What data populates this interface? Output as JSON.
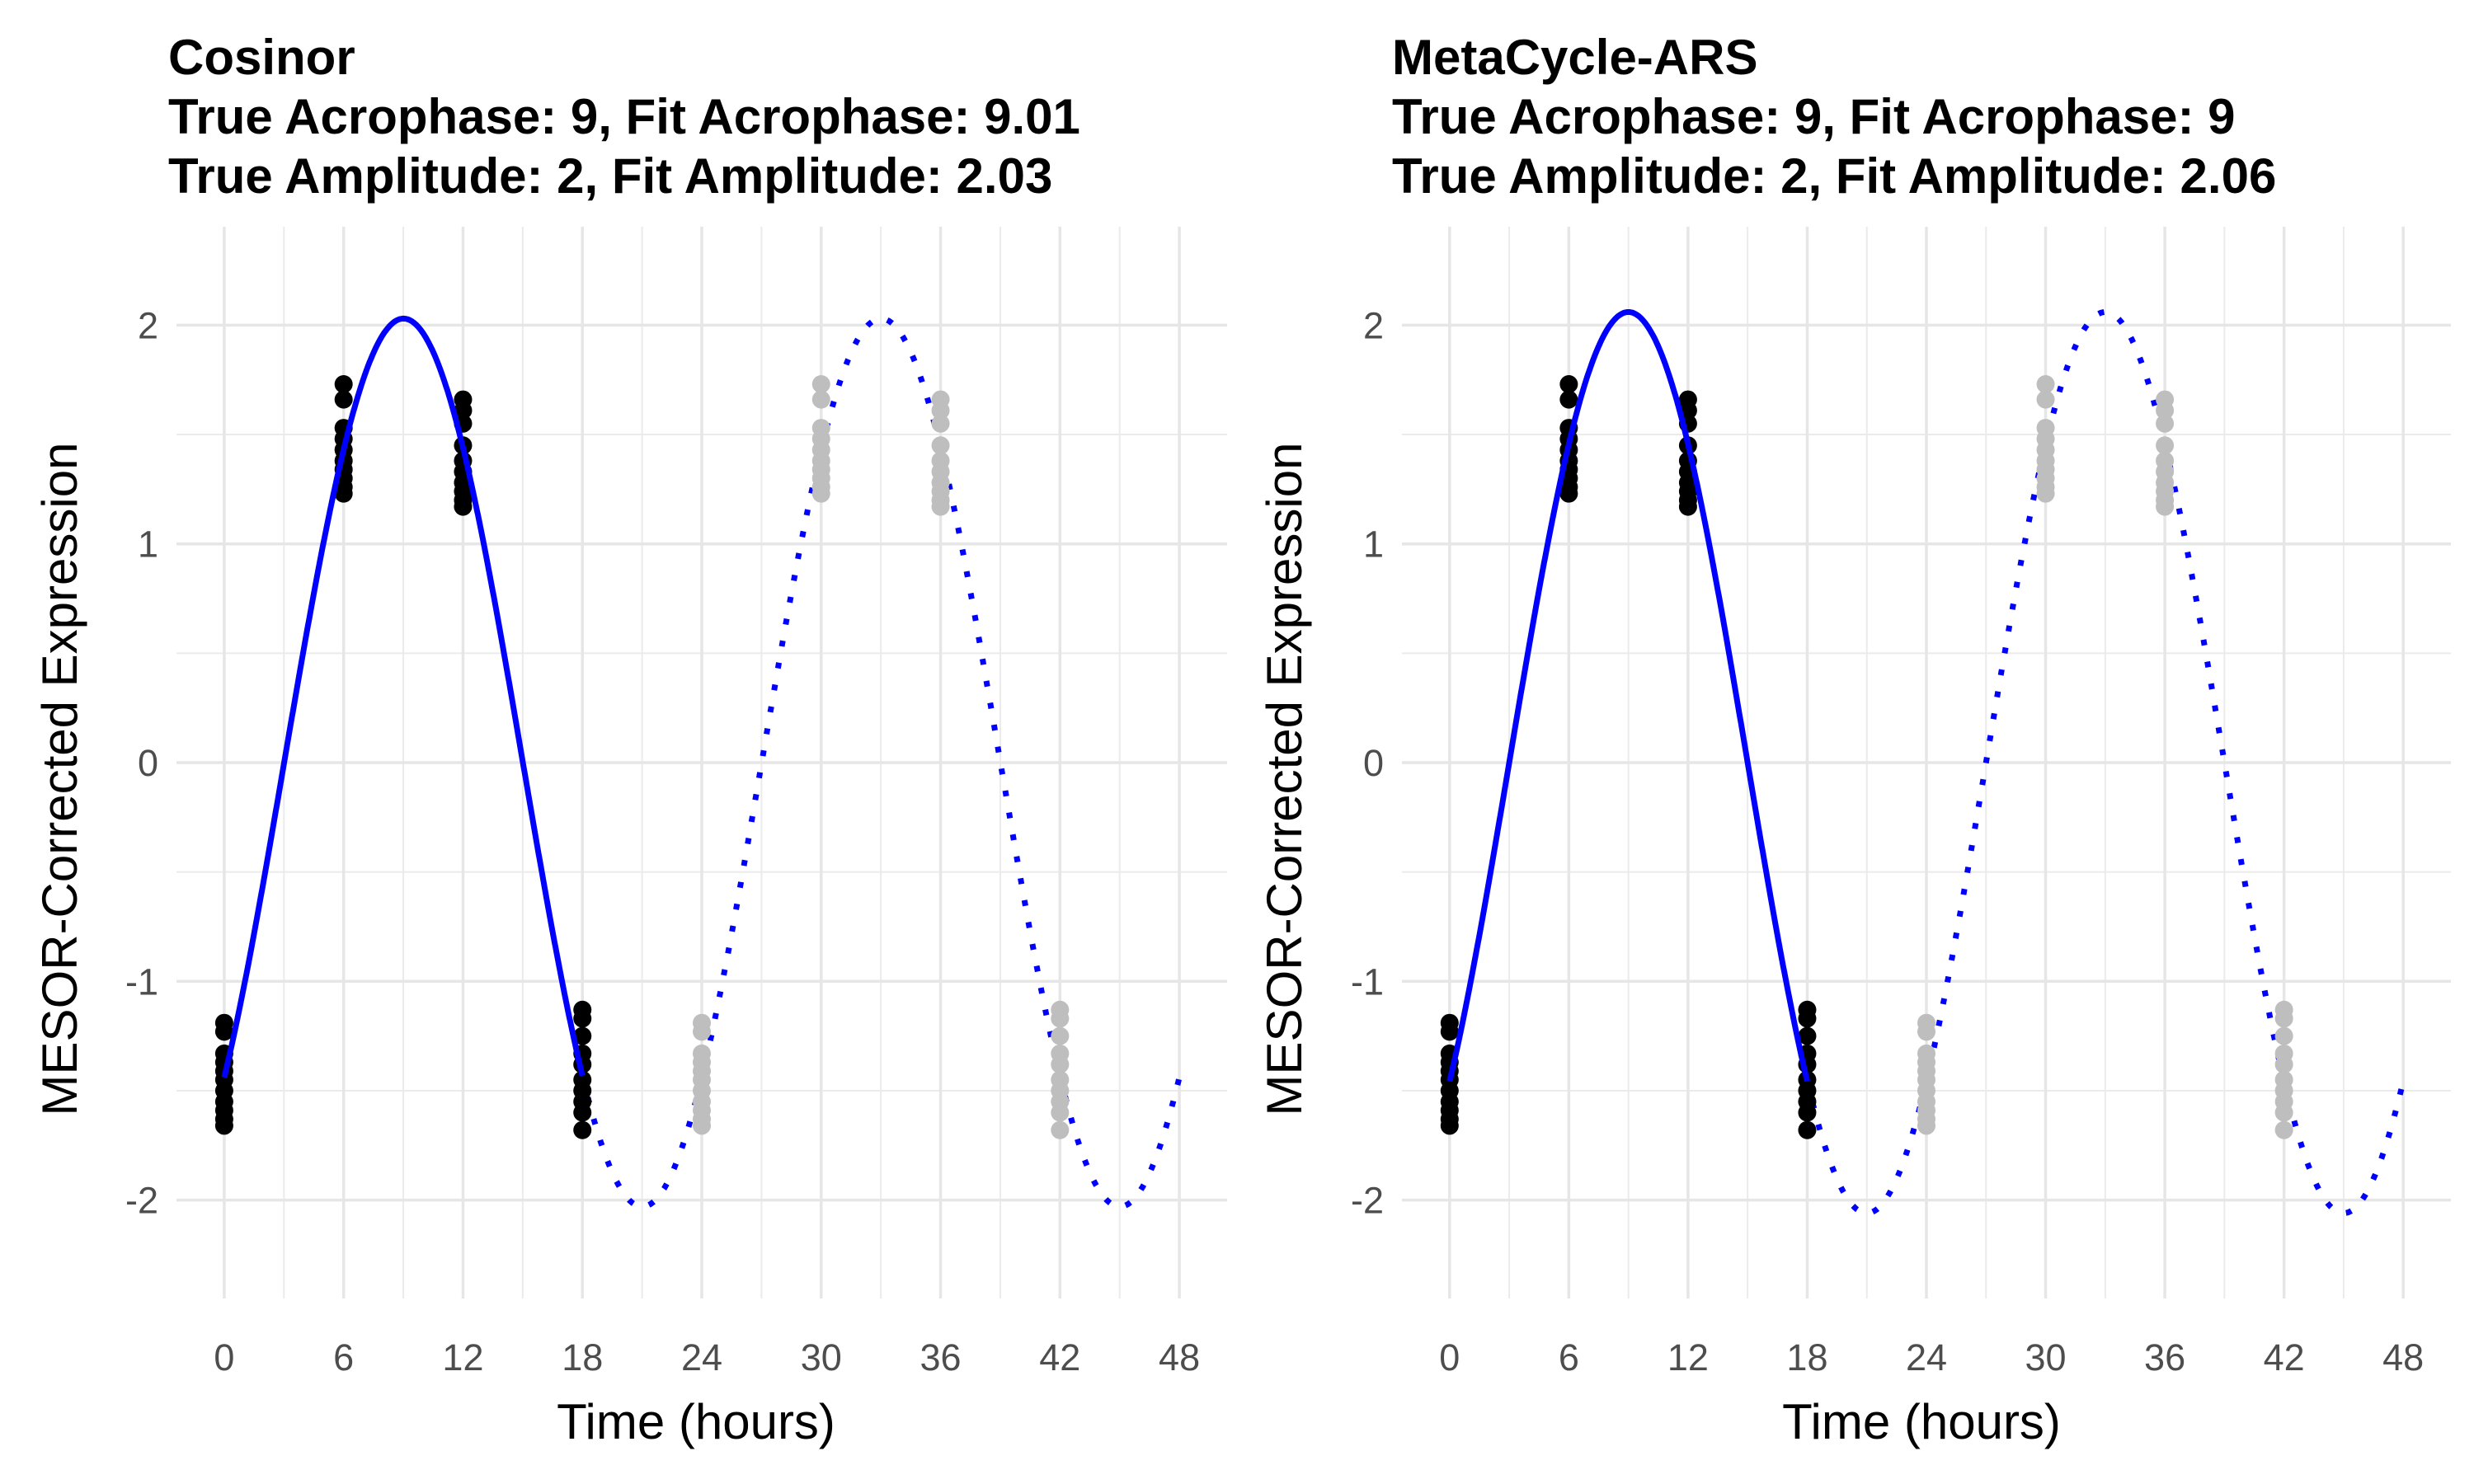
{
  "figure": {
    "background": "#ffffff"
  },
  "chart_data": [
    {
      "type": "scatter",
      "title_lines": [
        "Cosinor",
        "True Acrophase: 9, Fit Acrophase: 9.01",
        "True Amplitude: 2, Fit Amplitude: 2.03"
      ],
      "xlabel": "Time (hours)",
      "ylabel": "MESOR-Corrected Expression",
      "xlim": [
        -2.4,
        50.4
      ],
      "ylim": [
        -2.45,
        2.45
      ],
      "x_ticks": [
        0,
        6,
        12,
        18,
        24,
        30,
        36,
        42,
        48
      ],
      "x_tick_labels": [
        "0",
        "6",
        "12",
        "18",
        "24",
        "30",
        "36",
        "42",
        "48"
      ],
      "y_ticks": [
        -2,
        -1,
        0,
        1,
        2
      ],
      "y_tick_labels": [
        "-2",
        "-1",
        "0",
        "1",
        "2"
      ],
      "grid": true,
      "fit": {
        "acrophase": 9.01,
        "amplitude": 2.03,
        "period": 24
      },
      "fit_solid_range": [
        0,
        18
      ],
      "fit_dotted_range": [
        18,
        48
      ],
      "fit_color": "#0000ff",
      "observed": {
        "color": "#000000",
        "points": [
          {
            "x": 0,
            "y": [
              -1.19,
              -1.23,
              -1.33,
              -1.37,
              -1.41,
              -1.45,
              -1.5,
              -1.55,
              -1.59,
              -1.63,
              -1.66
            ]
          },
          {
            "x": 6,
            "y": [
              1.73,
              1.66,
              1.53,
              1.48,
              1.43,
              1.38,
              1.34,
              1.3,
              1.26,
              1.23
            ]
          },
          {
            "x": 12,
            "y": [
              1.66,
              1.61,
              1.55,
              1.45,
              1.38,
              1.33,
              1.28,
              1.24,
              1.2,
              1.17
            ]
          },
          {
            "x": 18,
            "y": [
              -1.13,
              -1.17,
              -1.25,
              -1.33,
              -1.38,
              -1.45,
              -1.5,
              -1.55,
              -1.6,
              -1.68
            ]
          }
        ]
      },
      "projected": {
        "color": "#bebebe",
        "points": [
          {
            "x": 24,
            "y": [
              -1.19,
              -1.23,
              -1.33,
              -1.37,
              -1.41,
              -1.45,
              -1.5,
              -1.55,
              -1.59,
              -1.63,
              -1.66
            ]
          },
          {
            "x": 30,
            "y": [
              1.73,
              1.66,
              1.53,
              1.48,
              1.43,
              1.38,
              1.34,
              1.3,
              1.26,
              1.23
            ]
          },
          {
            "x": 36,
            "y": [
              1.66,
              1.61,
              1.55,
              1.45,
              1.38,
              1.33,
              1.28,
              1.24,
              1.2,
              1.17
            ]
          },
          {
            "x": 42,
            "y": [
              -1.13,
              -1.17,
              -1.25,
              -1.33,
              -1.38,
              -1.45,
              -1.5,
              -1.55,
              -1.6,
              -1.68
            ]
          }
        ]
      }
    },
    {
      "type": "scatter",
      "title_lines": [
        "MetaCycle-ARS",
        "True Acrophase: 9, Fit Acrophase: 9",
        "True Amplitude: 2, Fit Amplitude: 2.06"
      ],
      "xlabel": "Time (hours)",
      "ylabel": "MESOR-Corrected Expression",
      "xlim": [
        -2.4,
        50.4
      ],
      "ylim": [
        -2.45,
        2.45
      ],
      "x_ticks": [
        0,
        6,
        12,
        18,
        24,
        30,
        36,
        42,
        48
      ],
      "x_tick_labels": [
        "0",
        "6",
        "12",
        "18",
        "24",
        "30",
        "36",
        "42",
        "48"
      ],
      "y_ticks": [
        -2,
        -1,
        0,
        1,
        2
      ],
      "y_tick_labels": [
        "-2",
        "-1",
        "0",
        "1",
        "2"
      ],
      "grid": true,
      "fit": {
        "acrophase": 9,
        "amplitude": 2.06,
        "period": 24
      },
      "fit_solid_range": [
        0,
        18
      ],
      "fit_dotted_range": [
        18,
        48
      ],
      "fit_color": "#0000ff",
      "observed": {
        "color": "#000000",
        "points": [
          {
            "x": 0,
            "y": [
              -1.19,
              -1.23,
              -1.33,
              -1.37,
              -1.41,
              -1.45,
              -1.5,
              -1.55,
              -1.59,
              -1.63,
              -1.66
            ]
          },
          {
            "x": 6,
            "y": [
              1.73,
              1.66,
              1.53,
              1.48,
              1.43,
              1.38,
              1.34,
              1.3,
              1.26,
              1.23
            ]
          },
          {
            "x": 12,
            "y": [
              1.66,
              1.61,
              1.55,
              1.45,
              1.38,
              1.33,
              1.28,
              1.24,
              1.2,
              1.17
            ]
          },
          {
            "x": 18,
            "y": [
              -1.13,
              -1.17,
              -1.25,
              -1.33,
              -1.38,
              -1.45,
              -1.5,
              -1.55,
              -1.6,
              -1.68
            ]
          }
        ]
      },
      "projected": {
        "color": "#bebebe",
        "points": [
          {
            "x": 24,
            "y": [
              -1.19,
              -1.23,
              -1.33,
              -1.37,
              -1.41,
              -1.45,
              -1.5,
              -1.55,
              -1.59,
              -1.63,
              -1.66
            ]
          },
          {
            "x": 30,
            "y": [
              1.73,
              1.66,
              1.53,
              1.48,
              1.43,
              1.38,
              1.34,
              1.3,
              1.26,
              1.23
            ]
          },
          {
            "x": 36,
            "y": [
              1.66,
              1.61,
              1.55,
              1.45,
              1.38,
              1.33,
              1.28,
              1.24,
              1.2,
              1.17
            ]
          },
          {
            "x": 42,
            "y": [
              -1.13,
              -1.17,
              -1.25,
              -1.33,
              -1.38,
              -1.45,
              -1.5,
              -1.55,
              -1.6,
              -1.68
            ]
          }
        ]
      }
    }
  ]
}
